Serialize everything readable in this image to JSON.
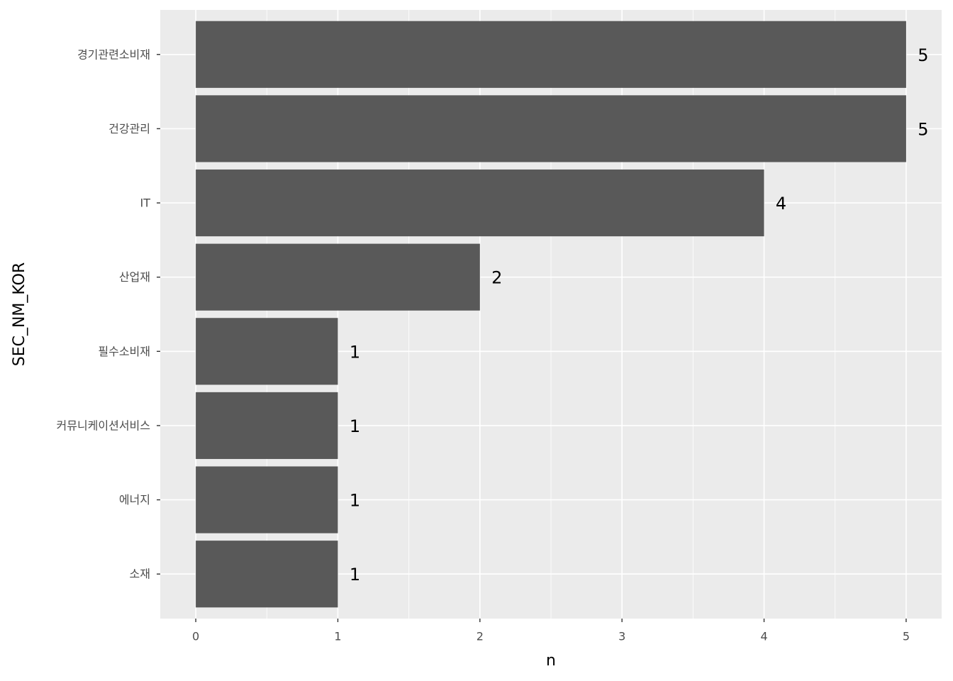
{
  "chart_data": {
    "type": "barh",
    "categories": [
      "경기관련소비재",
      "건강관리",
      "IT",
      "산업재",
      "필수소비재",
      "커뮤니케이션서비스",
      "에너지",
      "소재"
    ],
    "values": [
      5,
      5,
      4,
      2,
      1,
      1,
      1,
      1
    ],
    "color": "#595959",
    "xlabel": "n",
    "ylabel": "SEC_NM_KOR",
    "xlim": [
      -0.25,
      5.25
    ],
    "xticks": [
      0,
      1,
      2,
      3,
      4,
      5
    ],
    "grid": true
  }
}
